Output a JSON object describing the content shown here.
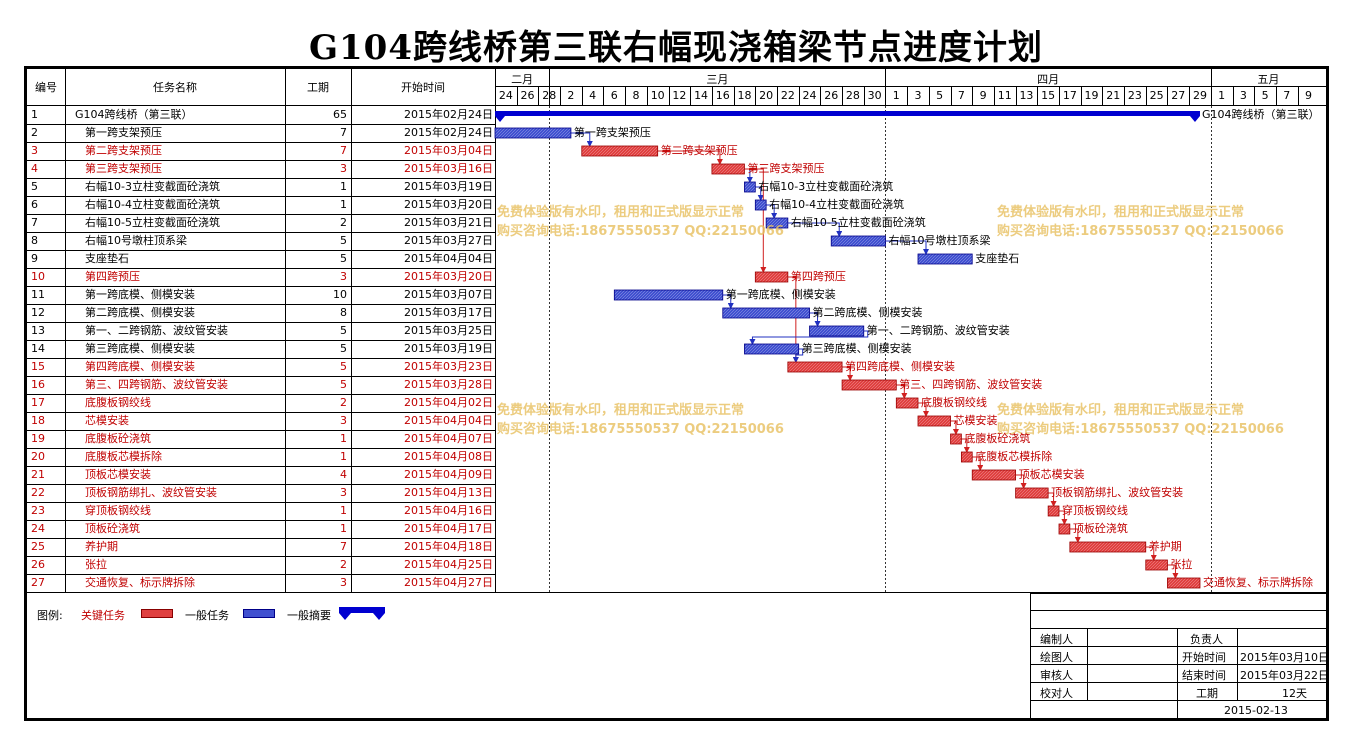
{
  "title": "G104跨线桥第三联右幅现浇箱梁节点进度计划",
  "headers": {
    "id": "编号",
    "name": "任务名称",
    "duration": "工期",
    "start": "开始时间"
  },
  "months": [
    {
      "label": "二月",
      "d0": 0,
      "d1": 5
    },
    {
      "label": "三月",
      "d0": 5,
      "d1": 36
    },
    {
      "label": "四月",
      "d0": 36,
      "d1": 66
    },
    {
      "label": "五月",
      "d0": 66,
      "d1": 77
    }
  ],
  "day_labels": [
    "24",
    "26",
    "28",
    "2",
    "4",
    "6",
    "8",
    "10",
    "12",
    "14",
    "16",
    "18",
    "20",
    "22",
    "24",
    "26",
    "28",
    "30",
    "1",
    "3",
    "5",
    "7",
    "9",
    "11",
    "13",
    "15",
    "17",
    "19",
    "21",
    "23",
    "25",
    "27",
    "29",
    "1",
    "3",
    "5",
    "7",
    "9"
  ],
  "tasks": [
    {
      "id": "1",
      "name": "G104跨线桥（第三联）",
      "duration": "65",
      "start": "2015年02月24日",
      "type": "summary",
      "d": 0,
      "len": 65,
      "label": "G104跨线桥（第三联）"
    },
    {
      "id": "2",
      "name": "第一跨支架预压",
      "duration": "7",
      "start": "2015年02月24日",
      "type": "normal",
      "d": 0,
      "len": 7,
      "label": "第一跨支架预压"
    },
    {
      "id": "3",
      "name": "第二跨支架预压",
      "duration": "7",
      "start": "2015年03月04日",
      "type": "critical",
      "d": 8,
      "len": 7,
      "label": "第二跨支架预压"
    },
    {
      "id": "4",
      "name": "第三跨支架预压",
      "duration": "3",
      "start": "2015年03月16日",
      "type": "critical",
      "d": 20,
      "len": 3,
      "label": "第三跨支架预压"
    },
    {
      "id": "5",
      "name": "右幅10-3立柱变截面砼浇筑",
      "duration": "1",
      "start": "2015年03月19日",
      "type": "normal",
      "d": 23,
      "len": 1,
      "label": "右幅10-3立柱变截面砼浇筑"
    },
    {
      "id": "6",
      "name": "右幅10-4立柱变截面砼浇筑",
      "duration": "1",
      "start": "2015年03月20日",
      "type": "normal",
      "d": 24,
      "len": 1,
      "label": "右幅10-4立柱变截面砼浇筑"
    },
    {
      "id": "7",
      "name": "右幅10-5立柱变截面砼浇筑",
      "duration": "2",
      "start": "2015年03月21日",
      "type": "normal",
      "d": 25,
      "len": 2,
      "label": "右幅10-5立柱变截面砼浇筑"
    },
    {
      "id": "8",
      "name": "右幅10号墩柱顶系梁",
      "duration": "5",
      "start": "2015年03月27日",
      "type": "normal",
      "d": 31,
      "len": 5,
      "label": "右幅10号墩柱顶系梁"
    },
    {
      "id": "9",
      "name": "支座垫石",
      "duration": "5",
      "start": "2015年04月04日",
      "type": "normal",
      "d": 39,
      "len": 5,
      "label": "支座垫石"
    },
    {
      "id": "10",
      "name": "第四跨预压",
      "duration": "3",
      "start": "2015年03月20日",
      "type": "critical",
      "d": 24,
      "len": 3,
      "label": "第四跨预压"
    },
    {
      "id": "11",
      "name": "第一跨底模、侧模安装",
      "duration": "10",
      "start": "2015年03月07日",
      "type": "normal",
      "d": 11,
      "len": 10,
      "label": "第一跨底模、侧模安装"
    },
    {
      "id": "12",
      "name": "第二跨底模、侧模安装",
      "duration": "8",
      "start": "2015年03月17日",
      "type": "normal",
      "d": 21,
      "len": 8,
      "label": "第二跨底模、侧模安装"
    },
    {
      "id": "13",
      "name": "第一、二跨钢筋、波纹管安装",
      "duration": "5",
      "start": "2015年03月25日",
      "type": "normal",
      "d": 29,
      "len": 5,
      "label": "第一、二跨钢筋、波纹管安装"
    },
    {
      "id": "14",
      "name": "第三跨底模、侧模安装",
      "duration": "5",
      "start": "2015年03月19日",
      "type": "normal",
      "d": 23,
      "len": 5,
      "label": "第三跨底模、侧模安装"
    },
    {
      "id": "15",
      "name": "第四跨底模、侧模安装",
      "duration": "5",
      "start": "2015年03月23日",
      "type": "critical",
      "d": 27,
      "len": 5,
      "label": "第四跨底模、侧模安装"
    },
    {
      "id": "16",
      "name": "第三、四跨钢筋、波纹管安装",
      "duration": "5",
      "start": "2015年03月28日",
      "type": "critical",
      "d": 32,
      "len": 5,
      "label": "第三、四跨钢筋、波纹管安装"
    },
    {
      "id": "17",
      "name": "底腹板钢绞线",
      "duration": "2",
      "start": "2015年04月02日",
      "type": "critical",
      "d": 37,
      "len": 2,
      "label": "底腹板钢绞线"
    },
    {
      "id": "18",
      "name": "芯模安装",
      "duration": "3",
      "start": "2015年04月04日",
      "type": "critical",
      "d": 39,
      "len": 3,
      "label": "芯模安装"
    },
    {
      "id": "19",
      "name": "底腹板砼浇筑",
      "duration": "1",
      "start": "2015年04月07日",
      "type": "critical",
      "d": 42,
      "len": 1,
      "label": "底腹板砼浇筑"
    },
    {
      "id": "20",
      "name": "底腹板芯模拆除",
      "duration": "1",
      "start": "2015年04月08日",
      "type": "critical",
      "d": 43,
      "len": 1,
      "label": "底腹板芯模拆除"
    },
    {
      "id": "21",
      "name": "顶板芯模安装",
      "duration": "4",
      "start": "2015年04月09日",
      "type": "critical",
      "d": 44,
      "len": 4,
      "label": "顶板芯模安装"
    },
    {
      "id": "22",
      "name": "顶板钢筋绑扎、波纹管安装",
      "duration": "3",
      "start": "2015年04月13日",
      "type": "critical",
      "d": 48,
      "len": 3,
      "label": "顶板钢筋绑扎、波纹管安装"
    },
    {
      "id": "23",
      "name": "穿顶板钢绞线",
      "duration": "1",
      "start": "2015年04月16日",
      "type": "critical",
      "d": 51,
      "len": 1,
      "label": "穿顶板钢绞线"
    },
    {
      "id": "24",
      "name": "顶板砼浇筑",
      "duration": "1",
      "start": "2015年04月17日",
      "type": "critical",
      "d": 52,
      "len": 1,
      "label": "顶板砼浇筑"
    },
    {
      "id": "25",
      "name": "养护期",
      "duration": "7",
      "start": "2015年04月18日",
      "type": "critical",
      "d": 53,
      "len": 7,
      "label": "养护期"
    },
    {
      "id": "26",
      "name": "张拉",
      "duration": "2",
      "start": "2015年04月25日",
      "type": "critical",
      "d": 60,
      "len": 2,
      "label": "张拉"
    },
    {
      "id": "27",
      "name": "交通恢复、标示牌拆除",
      "duration": "3",
      "start": "2015年04月27日",
      "type": "critical",
      "d": 62,
      "len": 3,
      "label": "交通恢复、标示牌拆除"
    }
  ],
  "links": [
    [
      2,
      3
    ],
    [
      3,
      4
    ],
    [
      4,
      5
    ],
    [
      5,
      6
    ],
    [
      6,
      7
    ],
    [
      7,
      8
    ],
    [
      8,
      9
    ],
    [
      4,
      10
    ],
    [
      10,
      15
    ],
    [
      11,
      12
    ],
    [
      12,
      13
    ],
    [
      13,
      14
    ],
    [
      14,
      15
    ],
    [
      15,
      16
    ],
    [
      16,
      17
    ],
    [
      17,
      18
    ],
    [
      18,
      19
    ],
    [
      19,
      20
    ],
    [
      20,
      21
    ],
    [
      21,
      22
    ],
    [
      22,
      23
    ],
    [
      23,
      24
    ],
    [
      24,
      25
    ],
    [
      25,
      26
    ],
    [
      26,
      27
    ]
  ],
  "watermark": {
    "line1": "免费体验版有水印，租用和正式版显示正常",
    "line2": "购买咨询电话:18675550537 QQ:22150066"
  },
  "legend": {
    "label": "图例:",
    "critical": "关键任务",
    "normal": "一般任务",
    "summary": "一般摘要"
  },
  "sign": {
    "editor": "编制人",
    "responsible": "负责人",
    "drawer": "绘图人",
    "start_label": "开始时间",
    "start_value": "2015年03月10日",
    "reviewer": "审核人",
    "end_label": "结束时间",
    "end_value": "2015年03月22日",
    "checker": "校对人",
    "duration_label": "工期",
    "duration_value": "12天",
    "date": "2015-02-13"
  },
  "colors": {
    "critical": "#e04040",
    "normal": "#4050d0",
    "summary": "#0000d0",
    "link_normal": "#2030c0",
    "link_critical": "#d02020"
  }
}
